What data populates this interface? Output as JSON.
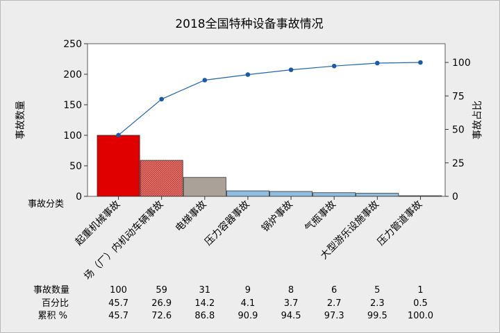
{
  "chart_data": {
    "type": "bar",
    "title": "2018全国特种设备事故情况",
    "ylabel": "事故数量",
    "y2label": "事故占比",
    "xlabel": "事故分类",
    "ylim": [
      0,
      250
    ],
    "y2lim": [
      0,
      114
    ],
    "yticks": [
      0,
      50,
      100,
      150,
      200,
      250
    ],
    "y2ticks": [
      0,
      25,
      50,
      75,
      100
    ],
    "categories": [
      "起重机械事故",
      "场（厂）内机动车辆事故",
      "电梯事故",
      "压力容器事故",
      "锅炉事故",
      "气瓶事故",
      "大型游乐设施事故",
      "压力管道事故"
    ],
    "series": [
      {
        "values": [
          100,
          59,
          31,
          9,
          8,
          6,
          5,
          1
        ],
        "type": "bar"
      },
      {
        "values": [
          45.7,
          72.6,
          86.8,
          90.9,
          94.5,
          97.3,
          99.5,
          100.0
        ],
        "type": "line",
        "axis": "right"
      }
    ],
    "bar_colors": [
      "#e00000",
      "#c8403c",
      "#aaa198",
      "#90bce0",
      "#90bce0",
      "#90bce0",
      "#90bce0",
      "#90bce0"
    ],
    "line_color": "#1f63b5",
    "grid": false,
    "table": {
      "rows": [
        {
          "label": "事故数量",
          "values": [
            "100",
            "59",
            "31",
            "9",
            "8",
            "6",
            "5",
            "1"
          ]
        },
        {
          "label": "百分比",
          "values": [
            "45.7",
            "26.9",
            "14.2",
            "4.1",
            "3.7",
            "2.7",
            "2.3",
            "0.5"
          ]
        },
        {
          "label": "累积 %",
          "values": [
            "45.7",
            "72.6",
            "86.8",
            "90.9",
            "94.5",
            "97.3",
            "99.5",
            "100.0"
          ]
        }
      ]
    }
  }
}
